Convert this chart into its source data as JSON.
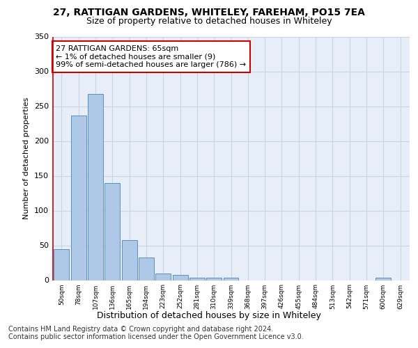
{
  "title1": "27, RATTIGAN GARDENS, WHITELEY, FAREHAM, PO15 7EA",
  "title2": "Size of property relative to detached houses in Whiteley",
  "xlabel": "Distribution of detached houses by size in Whiteley",
  "ylabel": "Number of detached properties",
  "categories": [
    "50sqm",
    "78sqm",
    "107sqm",
    "136sqm",
    "165sqm",
    "194sqm",
    "223sqm",
    "252sqm",
    "281sqm",
    "310sqm",
    "339sqm",
    "368sqm",
    "397sqm",
    "426sqm",
    "455sqm",
    "484sqm",
    "513sqm",
    "542sqm",
    "571sqm",
    "600sqm",
    "629sqm"
  ],
  "values": [
    45,
    237,
    268,
    140,
    58,
    33,
    10,
    8,
    4,
    4,
    4,
    0,
    0,
    0,
    0,
    0,
    0,
    0,
    0,
    4,
    0
  ],
  "bar_color": "#aec8e8",
  "bar_edge_color": "#5a8fc0",
  "annotation_text": "27 RATTIGAN GARDENS: 65sqm\n← 1% of detached houses are smaller (9)\n99% of semi-detached houses are larger (786) →",
  "annotation_box_color": "#ffffff",
  "annotation_box_edge": "#cc0000",
  "grid_color": "#c8d4e8",
  "plot_bg_color": "#e8eef8",
  "marker_line_color": "#cc0000",
  "ylim": [
    0,
    350
  ],
  "yticks": [
    0,
    50,
    100,
    150,
    200,
    250,
    300,
    350
  ],
  "footer_text": "Contains HM Land Registry data © Crown copyright and database right 2024.\nContains public sector information licensed under the Open Government Licence v3.0.",
  "title1_fontsize": 10,
  "title2_fontsize": 9,
  "xlabel_fontsize": 9,
  "ylabel_fontsize": 8,
  "annotation_fontsize": 8,
  "footer_fontsize": 7
}
